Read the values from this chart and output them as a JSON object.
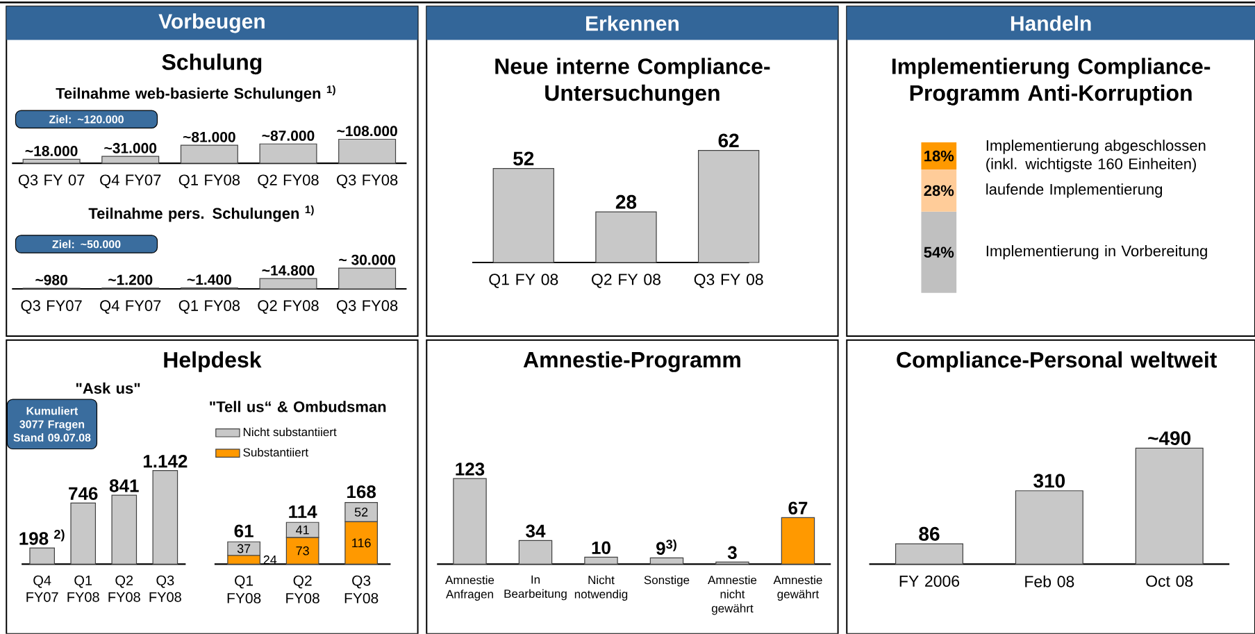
{
  "chart_data": [
    {
      "type": "bar",
      "title": "Schulung",
      "subtitle": "Teilnahme web-basierte Schulungen $^{1)}$",
      "annotations": [
        "Vorbeugen",
        "Ziel: ~120.000"
      ],
      "categories": [
        "Q3 FY 07",
        "Q4 FY07",
        "Q1 FY08",
        "Q2 FY08",
        "Q3 FY08"
      ],
      "values": [
        18000,
        31000,
        81000,
        87000,
        108000
      ],
      "value_labels": [
        "~18.000",
        "~31.000",
        "~81.000",
        "~87.000",
        "~108.000"
      ],
      "color": "#c8c8c8"
    },
    {
      "type": "bar",
      "subtitle": "Teilnahme pers. Schulungen $^{1)}$",
      "annotations": [
        "Ziel: ~50.000"
      ],
      "categories": [
        "Q3 FY07",
        "Q4 FY07",
        "Q1 FY08",
        "Q2 FY08",
        "Q3 FY08"
      ],
      "values": [
        980,
        1200,
        1400,
        14800,
        30000
      ],
      "value_labels": [
        "~980",
        "~1.200",
        "~1.400",
        "~14.800",
        "~ 30.000"
      ],
      "color": "#c8c8c8"
    },
    {
      "type": "bar",
      "title": "Neue interne Compliance-Untersuchungen",
      "annotations": [
        "Erkennen"
      ],
      "categories": [
        "Q1 FY 08",
        "Q2 FY 08",
        "Q3 FY 08"
      ],
      "values": [
        52,
        28,
        62
      ],
      "color": "#c8c8c8",
      "data_labels": true
    },
    {
      "type": "bar",
      "stacked": true,
      "title": "Implementierung Compliance-Programm Anti-Korruption",
      "annotations": [
        "Handeln"
      ],
      "categories": [
        null
      ],
      "series": [
        {
          "name": "Implementierung in Vorbereitung",
          "color": "#c0c0c0",
          "values": [
            54
          ],
          "value_labels": [
            "54%"
          ]
        },
        {
          "name": "laufende Implementierung",
          "color": "#ffcc99",
          "values": [
            28
          ],
          "value_labels": [
            "28%"
          ]
        },
        {
          "name": "Implementierung abgeschlossen (inkl. wichtigste 160 Einheiten)",
          "color": "#ff9900",
          "values": [
            18
          ],
          "value_labels": [
            "18%"
          ]
        }
      ]
    },
    {
      "type": "bar",
      "title": "Helpdesk",
      "subtitle": "\"Ask us\"",
      "annotations": [
        "Kumuliert 3077 Fragen Stand 09.07.08"
      ],
      "categories": [
        "Q4 FY07",
        "Q1 FY08",
        "Q2 FY08",
        "Q3 FY08"
      ],
      "values": [
        198,
        746,
        841,
        1142
      ],
      "value_labels": [
        "198 $^{2)}$",
        "746",
        "841",
        "1.142"
      ],
      "color": "#c8c8c8"
    },
    {
      "type": "bar",
      "stacked": true,
      "subtitle": "\"Tell us“ & Ombudsman",
      "categories": [
        "Q1 FY08",
        "Q2 FY08",
        "Q3 FY08"
      ],
      "series": [
        {
          "name": "Substantiiert",
          "color": "#ff9900",
          "values": [
            24,
            73,
            116
          ]
        },
        {
          "name": "Nicht substantiiert",
          "color": "#c8c8c8",
          "values": [
            37,
            41,
            52
          ]
        }
      ],
      "data_labels": true,
      "totals": [
        "61",
        "114",
        "168"
      ],
      "legend": "top left"
    },
    {
      "type": "bar",
      "title": "Amnestie-Programm",
      "categories": [
        "Amnestie Anfragen",
        "In Bearbeitung",
        "Nicht notwendig",
        "Sonstige",
        "Amnestie nicht gewährt",
        "Amnestie gewährt"
      ],
      "values": [
        123,
        34,
        10,
        9,
        3,
        67
      ],
      "colors": [
        "#c8c8c8",
        "#c8c8c8",
        "#c8c8c8",
        "#c8c8c8",
        "#c8c8c8",
        "#ff9900"
      ],
      "value_labels": [
        "123",
        "34",
        "10",
        "9$^{3)}$",
        "3",
        "67"
      ]
    },
    {
      "type": "bar",
      "title": "Compliance-Personal weltweit",
      "categories": [
        "FY 2006",
        "Feb 08",
        "Oct 08"
      ],
      "values": [
        86,
        310,
        490
      ],
      "value_labels": [
        "86",
        "310",
        "~490"
      ],
      "color": "#c8c8c8"
    }
  ]
}
